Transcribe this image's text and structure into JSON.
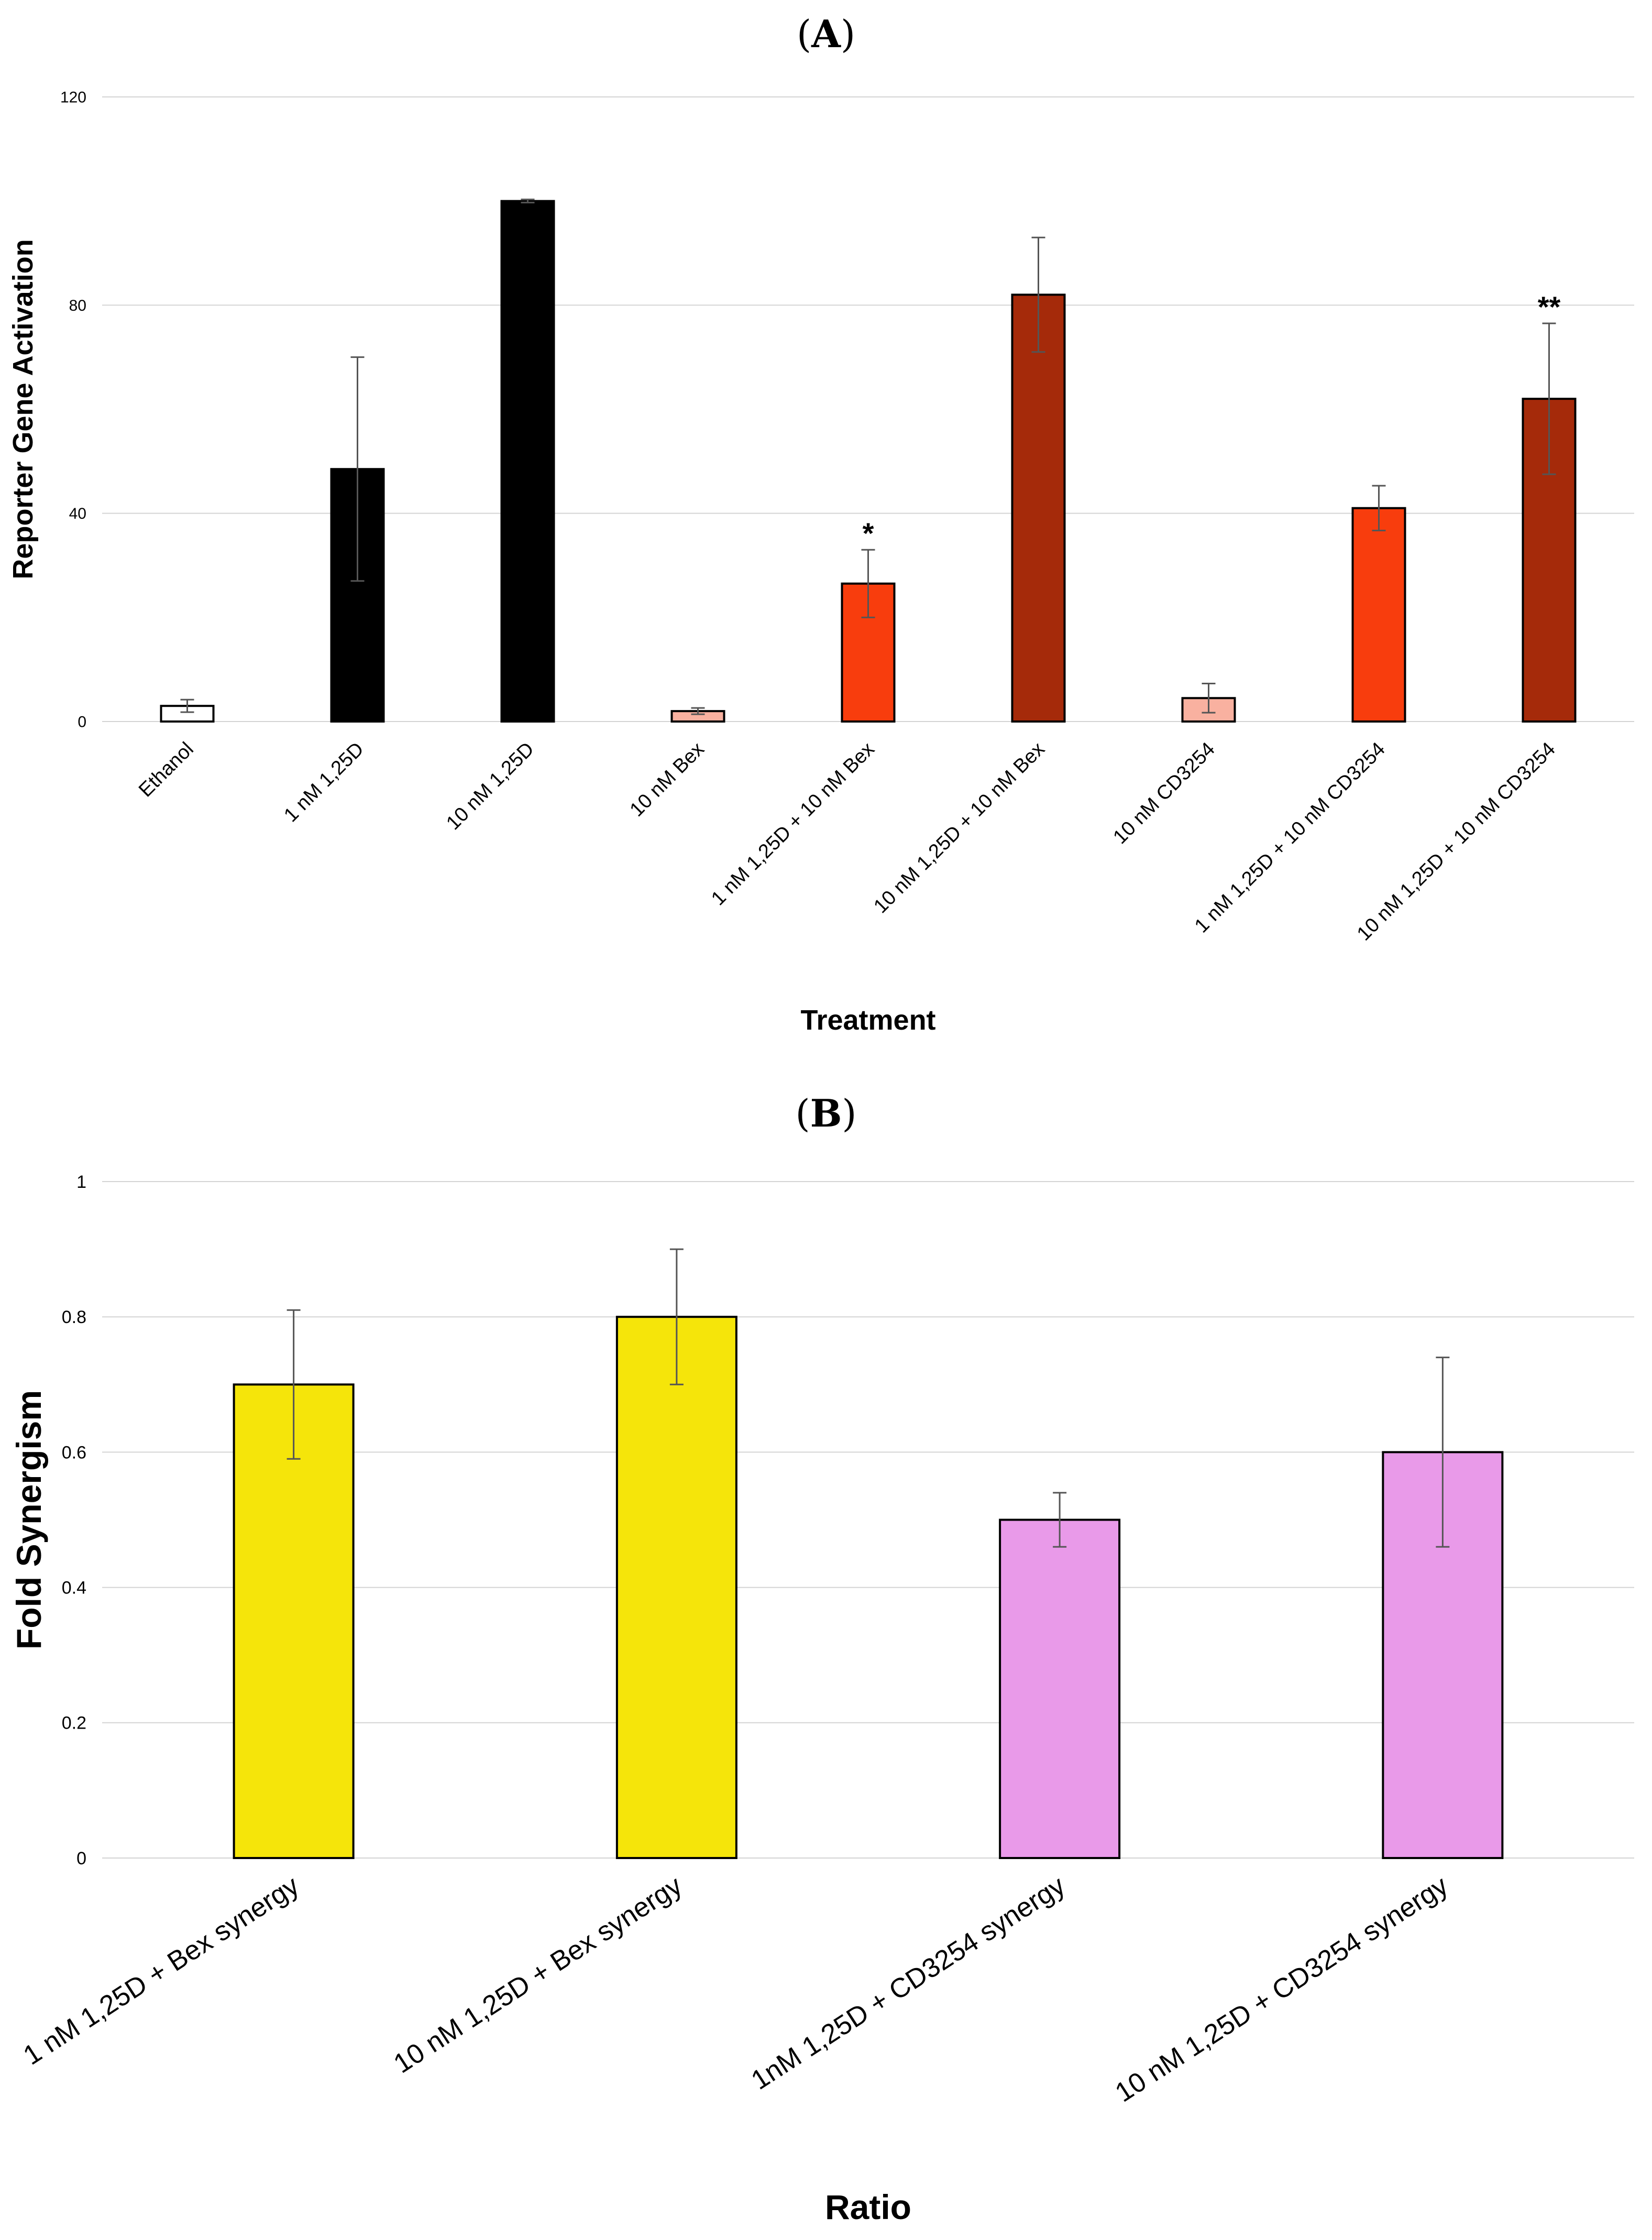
{
  "chart_data": [
    {
      "panel": "A",
      "type": "bar",
      "title": "",
      "xlabel": "Treatment",
      "ylabel": "Reporter Gene Activation",
      "ylim": [
        0,
        120
      ],
      "yticks": [
        0,
        40,
        80,
        120
      ],
      "grid": true,
      "categories": [
        "Ethanol",
        "1 nM 1,25D",
        "10 nM 1,25D",
        "10 nM Bex",
        "1 nM 1,25D + 10 nM Bex",
        "10 nM 1,25D + 10 nM Bex",
        "10 nM CD3254",
        "1 nM 1,25D + 10 nM CD3254",
        "10 nM 1,25D + 10 nM CD3254"
      ],
      "values": [
        3,
        48.5,
        100,
        2,
        26.5,
        82,
        4.5,
        41,
        62
      ],
      "errors": [
        1.2,
        21.5,
        0.3,
        0.6,
        6.5,
        11,
        2.8,
        4.3,
        14.5
      ],
      "annotations": [
        "",
        "",
        "",
        "",
        "*",
        "",
        "",
        "",
        "**"
      ],
      "colors": [
        "#ffffff",
        "#000000",
        "#000000",
        "#f9b1a0",
        "#f83d0d",
        "#a52a0a",
        "#f9b1a0",
        "#f83d0d",
        "#a52a0a"
      ]
    },
    {
      "panel": "B",
      "type": "bar",
      "title": "",
      "xlabel": "Ratio",
      "ylabel": "Fold Synergism",
      "ylim": [
        0,
        1
      ],
      "yticks": [
        0,
        0.2,
        0.4,
        0.6,
        0.8,
        1
      ],
      "grid": true,
      "categories": [
        "1 nM 1,25D + Bex synergy",
        "10 nM 1,25D + Bex synergy",
        "1nM 1,25D + CD3254 synergy",
        "10 nM 1,25D + CD3254 synergy"
      ],
      "values": [
        0.7,
        0.8,
        0.5,
        0.6
      ],
      "errors": [
        0.11,
        0.1,
        0.04,
        0.14
      ],
      "annotations": [
        "",
        "",
        "",
        ""
      ],
      "colors": [
        "#f5e50a",
        "#f5e50a",
        "#e99ae9",
        "#e99ae9"
      ]
    }
  ],
  "panels": {
    "a_open": "(",
    "a_letter": "A",
    "a_close": ")",
    "b_open": "(",
    "b_letter": "B",
    "b_close": ")"
  },
  "colors": {
    "grid": "#d4d4d4",
    "bar_stroke": "#000000",
    "error_bar": "#555555"
  }
}
